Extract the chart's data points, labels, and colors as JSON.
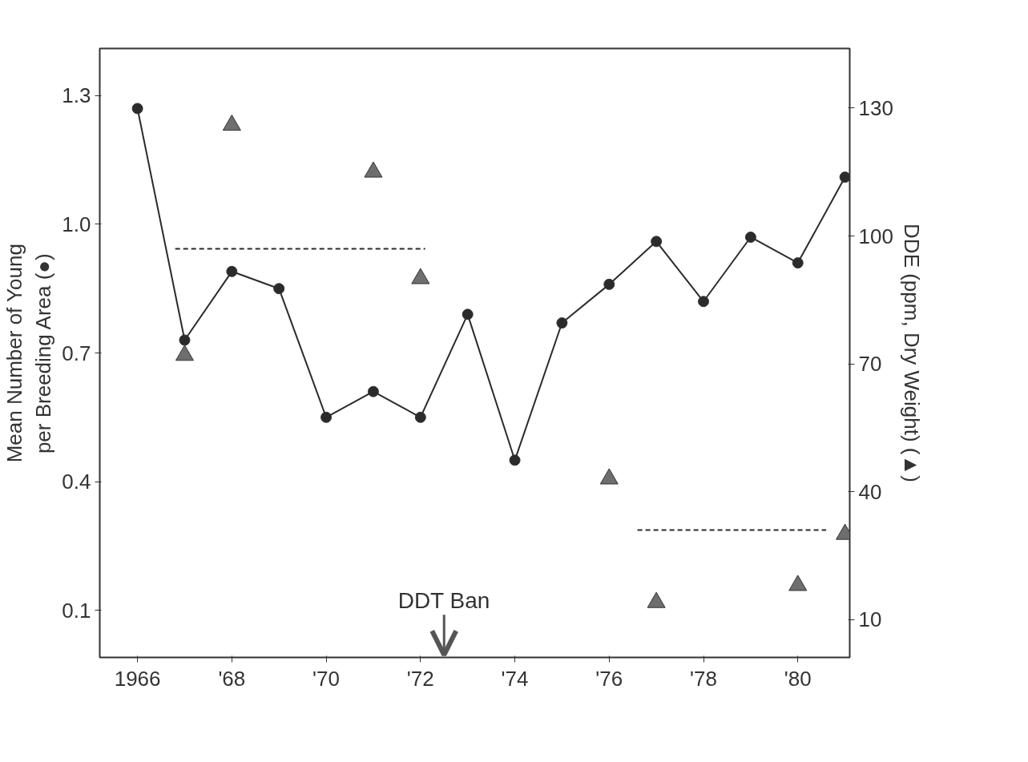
{
  "chart_data": {
    "type": "line",
    "ylabel": "Mean Number of Young\nper Breeding Area (●)",
    "y2label": "DDE (ppm, Dry Weight) (▲)",
    "x": [
      1966,
      1967,
      1968,
      1969,
      1970,
      1971,
      1972,
      1973,
      1974,
      1975,
      1976,
      1977,
      1978,
      1979,
      1980,
      1981
    ],
    "xlim": [
      1965.2,
      1981.1
    ],
    "xticks": [
      {
        "value": 1966,
        "label": "1966"
      },
      {
        "value": 1968,
        "label": "'68"
      },
      {
        "value": 1970,
        "label": "'70"
      },
      {
        "value": 1972,
        "label": "'72"
      },
      {
        "value": 1974,
        "label": "'74"
      },
      {
        "value": 1976,
        "label": "'76"
      },
      {
        "value": 1978,
        "label": "'78"
      },
      {
        "value": 1980,
        "label": "'80"
      }
    ],
    "ylim": [
      -0.01,
      1.41
    ],
    "yticks": [
      0.1,
      0.4,
      0.7,
      {
        "value": 1,
        "label": "1.0"
      },
      1.3
    ],
    "y2lim": [
      1.1,
      144
    ],
    "y2ticks": [
      10,
      40,
      70,
      100,
      130
    ],
    "grid": false,
    "series": [
      {
        "marker": "circle",
        "color": "#2b2b2b",
        "values": [
          1.27,
          0.73,
          0.89,
          0.85,
          0.55,
          0.61,
          0.55,
          0.79,
          0.45,
          0.77,
          0.86,
          0.96,
          0.82,
          0.97,
          0.91,
          1.11
        ]
      },
      {
        "type": "scatter",
        "marker": "triangle",
        "axis": "y2",
        "color": "#6e6e6e",
        "x": [
          1967,
          1968,
          1971,
          1972,
          1976,
          1977,
          1980,
          1981
        ],
        "values": [
          72,
          126,
          115,
          90,
          43,
          14,
          18,
          30
        ]
      },
      {
        "type": "line",
        "marker": "none",
        "line_style": "dashed",
        "axis": "y2",
        "color": "#2b2b2b",
        "x": [
          1966.8,
          1972.1
        ],
        "values": [
          97,
          97
        ]
      },
      {
        "type": "line",
        "marker": "none",
        "line_style": "dashed",
        "axis": "y2",
        "color": "#2b2b2b",
        "x": [
          1976.6,
          1980.6
        ],
        "values": [
          31,
          31
        ]
      }
    ],
    "ref_lines": [
      {
        "axis": "x",
        "value": 1972.5,
        "label": "DDT Ban",
        "color": "#555555"
      }
    ]
  }
}
